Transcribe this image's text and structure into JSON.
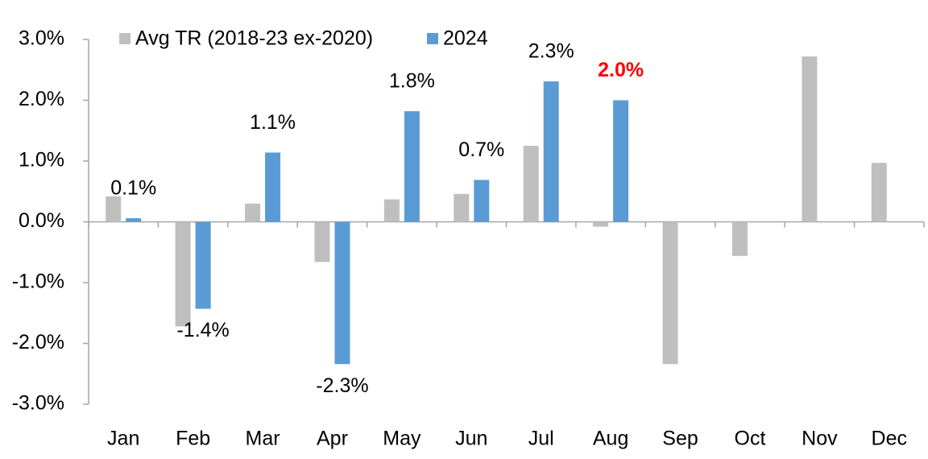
{
  "chart_data": {
    "type": "bar",
    "categories": [
      "Jan",
      "Feb",
      "Mar",
      "Apr",
      "May",
      "Jun",
      "Jul",
      "Aug",
      "Sep",
      "Oct",
      "Nov",
      "Dec"
    ],
    "series": [
      {
        "name": "Avg TR (2018-23 ex-2020)",
        "color": "#bfbfbf",
        "values": [
          0.42,
          -1.72,
          0.3,
          -0.66,
          0.37,
          0.46,
          1.25,
          -0.08,
          -2.34,
          -0.56,
          2.72,
          0.97
        ]
      },
      {
        "name": "2024",
        "color": "#5b9bd5",
        "values": [
          0.06,
          -1.43,
          1.14,
          -2.34,
          1.82,
          0.69,
          2.31,
          2.0,
          null,
          null,
          null,
          null
        ],
        "value_labels": [
          "0.1%",
          "-1.4%",
          "1.1%",
          "-2.3%",
          "1.8%",
          "0.7%",
          "2.3%",
          "2.0%",
          null,
          null,
          null,
          null
        ],
        "label_colors": [
          "#000000",
          "#000000",
          "#000000",
          "#000000",
          "#000000",
          "#000000",
          "#000000",
          "#ff0000",
          null,
          null,
          null,
          null
        ]
      }
    ],
    "ylim": [
      -3,
      3
    ],
    "yticks": [
      {
        "value": -3,
        "label": "-3.0%"
      },
      {
        "value": -2,
        "label": "-2.0%"
      },
      {
        "value": -1,
        "label": "-1.0%"
      },
      {
        "value": 0,
        "label": "0.0%"
      },
      {
        "value": 1,
        "label": "1.0%"
      },
      {
        "value": 2,
        "label": "2.0%"
      },
      {
        "value": 3,
        "label": "3.0%"
      }
    ],
    "grid": false,
    "legend": "top"
  }
}
